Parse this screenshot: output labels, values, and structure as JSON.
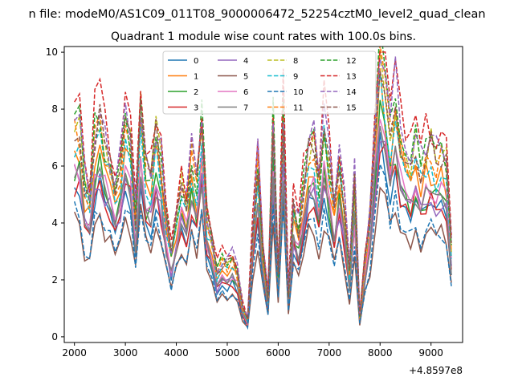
{
  "suptitle": "n file: modeM0/AS1C09_011T08_9000006472_52254cztM0_level2_quad_clean",
  "chart_data": {
    "type": "line",
    "title": "Quadrant 1 module wise count rates with 100.0s bins.",
    "xlabel": "",
    "ylabel": "",
    "x_offset_label": "+4.8597e8",
    "xlim": [
      1800,
      9620
    ],
    "ylim": [
      -0.2,
      10.2
    ],
    "xticks": [
      2000,
      3000,
      4000,
      5000,
      6000,
      7000,
      8000,
      9000
    ],
    "yticks": [
      0,
      2,
      4,
      6,
      8,
      10
    ],
    "legend_position": "top-center",
    "legend_columns": 4,
    "x": [
      2000,
      2100,
      2200,
      2300,
      2400,
      2500,
      2600,
      2700,
      2800,
      2900,
      3000,
      3100,
      3200,
      3300,
      3400,
      3500,
      3600,
      3700,
      3800,
      3900,
      4000,
      4100,
      4200,
      4300,
      4400,
      4500,
      4600,
      4700,
      4800,
      4900,
      5000,
      5100,
      5200,
      5300,
      5400,
      5500,
      5600,
      5700,
      5800,
      5900,
      6000,
      6100,
      6200,
      6300,
      6400,
      6500,
      6600,
      6700,
      6800,
      6900,
      7000,
      7100,
      7200,
      7300,
      7400,
      7500,
      7600,
      7700,
      7800,
      7900,
      8000,
      8100,
      8200,
      8300,
      8400,
      8500,
      8600,
      8700,
      8800,
      8900,
      9000,
      9100,
      9200,
      9300,
      9400
    ],
    "base_profile": [
      1.0,
      0.98,
      0.7,
      0.66,
      0.95,
      1.02,
      0.88,
      0.8,
      0.7,
      0.78,
      0.95,
      0.9,
      0.55,
      1.05,
      0.78,
      0.74,
      0.95,
      0.8,
      0.55,
      0.4,
      0.55,
      0.7,
      0.62,
      0.85,
      0.7,
      1.0,
      0.55,
      0.45,
      0.3,
      0.35,
      0.33,
      0.36,
      0.3,
      0.14,
      0.08,
      0.5,
      0.8,
      0.4,
      0.18,
      1.0,
      0.3,
      1.02,
      0.2,
      0.6,
      0.5,
      0.7,
      0.88,
      0.92,
      0.7,
      0.98,
      0.8,
      0.6,
      0.8,
      0.6,
      0.3,
      0.72,
      0.1,
      0.35,
      0.55,
      0.95,
      1.32,
      1.18,
      0.95,
      1.12,
      0.92,
      0.86,
      0.8,
      0.9,
      0.78,
      0.85,
      0.88,
      0.82,
      0.86,
      0.8,
      0.42
    ],
    "series": [
      {
        "name": "0",
        "color": "#1f77b4",
        "dash": "solid",
        "scale": 5.2,
        "seed": 1
      },
      {
        "name": "1",
        "color": "#ff7f0e",
        "dash": "solid",
        "scale": 6.7,
        "seed": 2
      },
      {
        "name": "2",
        "color": "#2ca02c",
        "dash": "solid",
        "scale": 5.8,
        "seed": 3
      },
      {
        "name": "3",
        "color": "#d62728",
        "dash": "solid",
        "scale": 5.4,
        "seed": 4
      },
      {
        "name": "4",
        "color": "#9467bd",
        "dash": "solid",
        "scale": 5.6,
        "seed": 5
      },
      {
        "name": "5",
        "color": "#8c564b",
        "dash": "solid",
        "scale": 4.2,
        "seed": 6
      },
      {
        "name": "6",
        "color": "#e377c2",
        "dash": "solid",
        "scale": 6.0,
        "seed": 7
      },
      {
        "name": "7",
        "color": "#7f7f7f",
        "dash": "solid",
        "scale": 5.7,
        "seed": 8
      },
      {
        "name": "8",
        "color": "#bcbd22",
        "dash": "dashed",
        "scale": 7.6,
        "seed": 9
      },
      {
        "name": "9",
        "color": "#17becf",
        "dash": "dashed",
        "scale": 6.9,
        "seed": 10
      },
      {
        "name": "10",
        "color": "#1f77b4",
        "dash": "dashed",
        "scale": 4.4,
        "seed": 11
      },
      {
        "name": "11",
        "color": "#ff7f0e",
        "dash": "dashed",
        "scale": 7.3,
        "seed": 12
      },
      {
        "name": "12",
        "color": "#2ca02c",
        "dash": "dashed",
        "scale": 7.7,
        "seed": 13
      },
      {
        "name": "13",
        "color": "#d62728",
        "dash": "dashed",
        "scale": 8.4,
        "seed": 14
      },
      {
        "name": "14",
        "color": "#9467bd",
        "dash": "dashed",
        "scale": 8.0,
        "seed": 15
      },
      {
        "name": "15",
        "color": "#8c564b",
        "dash": "dashed",
        "scale": 7.5,
        "seed": 16
      }
    ]
  }
}
